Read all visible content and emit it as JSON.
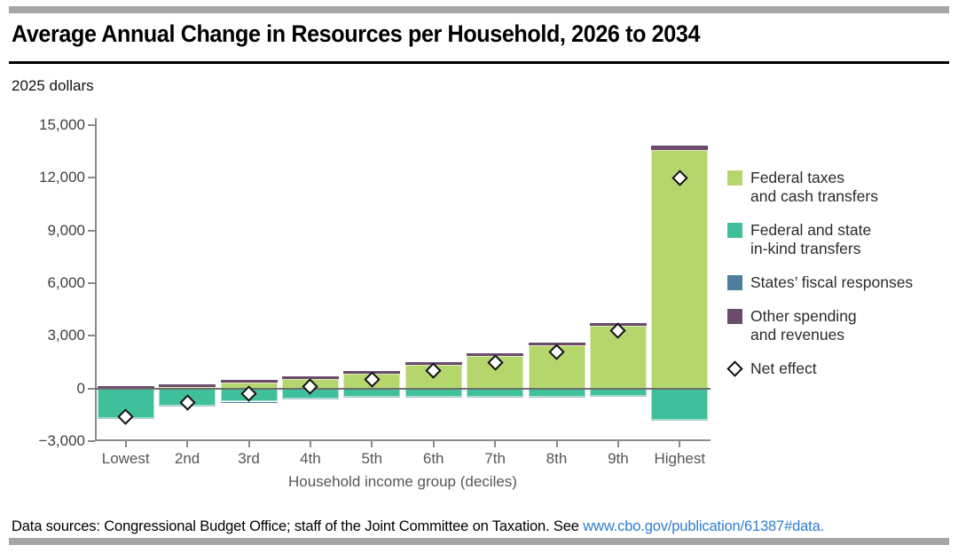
{
  "header": {
    "title": "Average Annual Change in Resources per Household, 2026 to 2034"
  },
  "chart_data": {
    "type": "bar",
    "stacked": true,
    "title": "Average Annual Change in Resources per Household, 2026 to 2034",
    "unit_label": "2025 dollars",
    "xlabel": "Household income group (deciles)",
    "categories": [
      "Lowest",
      "2nd",
      "3rd",
      "4th",
      "5th",
      "6th",
      "7th",
      "8th",
      "9th",
      "Highest"
    ],
    "series": [
      {
        "key": "green",
        "name": "Federal taxes and cash transfers",
        "values": [
          50,
          100,
          350,
          550,
          850,
          1350,
          1850,
          2450,
          3550,
          13600
        ]
      },
      {
        "key": "teal",
        "name": "Federal and state in-kind transfers",
        "values": [
          -1700,
          -1000,
          -750,
          -550,
          -450,
          -450,
          -450,
          -450,
          -400,
          -1800
        ]
      },
      {
        "key": "blue",
        "name": "States’ fiscal responses",
        "values": [
          -50,
          -50,
          -50,
          -50,
          -50,
          -50,
          -50,
          -50,
          -50,
          -50
        ]
      },
      {
        "key": "purple",
        "name": "Other spending and revenues",
        "values": [
          100,
          150,
          150,
          150,
          150,
          150,
          150,
          150,
          200,
          250
        ]
      }
    ],
    "net_effect": {
      "name": "Net effect",
      "values": [
        -1600,
        -800,
        -300,
        100,
        500,
        1000,
        1500,
        2100,
        3300,
        12000
      ]
    },
    "ylim": [
      -3000,
      15000
    ],
    "yticks": [
      15000,
      12000,
      9000,
      6000,
      3000,
      0,
      -3000
    ],
    "ytick_labels": [
      "15,000",
      "12,000",
      "9,000",
      "6,000",
      "3,000",
      "0",
      "−3,000"
    ],
    "grid": false,
    "legend_position": "right"
  },
  "legend": {
    "items": [
      {
        "key": "federal-taxes",
        "swatch": "green",
        "lines": [
          "Federal taxes",
          "and cash transfers"
        ]
      },
      {
        "key": "in-kind-transfers",
        "swatch": "teal",
        "lines": [
          "Federal and state",
          "in-kind transfers"
        ]
      },
      {
        "key": "states-responses",
        "swatch": "blue",
        "lines": [
          "States’ fiscal responses"
        ]
      },
      {
        "key": "other-spending",
        "swatch": "purple",
        "lines": [
          "Other spending",
          "and revenues"
        ]
      },
      {
        "key": "net-effect",
        "swatch": "diamond",
        "lines": [
          "Net effect"
        ]
      }
    ]
  },
  "footer": {
    "prefix": "Data sources: Congressional Budget Office; staff of the Joint Committee on Taxation. See ",
    "link_text": "www.cbo.gov/publication/61387#data."
  },
  "colors": {
    "green": "#b5d66c",
    "teal": "#3fbf9a",
    "blue": "#4d7f9c",
    "purple": "#6b4a6c",
    "axis_gray": "#8a8a8a",
    "zero_line": "#6f6f6f",
    "rule_gray": "#a6a6a6",
    "link_blue": "#2e7cd2",
    "diamond_fill": "#ffffff",
    "diamond_stroke": "#111111"
  }
}
